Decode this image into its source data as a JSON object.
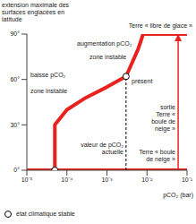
{
  "chart_data": {
    "type": "line",
    "x_label": "pCO₂ (bar)",
    "y_label": "extension maximale des surfaces englacées en latitude",
    "log": "x",
    "grid": false,
    "xlim": [
      1e-05,
      0.1
    ],
    "xticks": [
      {
        "value": 1e-05,
        "label": "10⁻⁵"
      },
      {
        "value": 0.0001,
        "label": "10⁻⁴"
      },
      {
        "value": 0.001,
        "label": "10⁻³"
      },
      {
        "value": 0.01,
        "label": "10⁻²"
      },
      {
        "value": 0.1,
        "label": "10⁻¹"
      }
    ],
    "ylim": [
      0,
      90
    ],
    "yticks": [
      {
        "value": 0,
        "label": "0°"
      },
      {
        "value": 30,
        "label": "30°"
      },
      {
        "value": 60,
        "label": "60°"
      },
      {
        "value": 90,
        "label": "90°"
      }
    ],
    "series": [
      {
        "name": "Terre « boule de neige »",
        "color": "#e8231f",
        "x": [
          1e-05,
          0.1
        ],
        "values": [
          0,
          0
        ]
      },
      {
        "name": "Terre « libre de glace »",
        "color": "#e8231f",
        "x": [
          0.008,
          0.1
        ],
        "values": [
          90,
          90
        ]
      },
      {
        "color": "#e8231f",
        "x": [
          5e-05,
          5e-05,
          0.0001,
          0.0003,
          0.001,
          0.003,
          0.006,
          0.008
        ],
        "values": [
          0,
          30,
          40,
          48,
          55,
          62,
          80,
          90
        ]
      },
      {
        "name": "valeur de pCO₂ actuelle",
        "color": "#000000",
        "line_style": "dashed",
        "x": [
          0.003,
          0.003
        ],
        "values": [
          0,
          62
        ]
      },
      {
        "name": "sortie",
        "color": "#e8231f",
        "marker": "arrow",
        "x": [
          0.06,
          0.06
        ],
        "values": [
          0,
          90
        ]
      }
    ],
    "stable_states": {
      "label": "état climatique stable",
      "marker": "circle",
      "x": [
        5e-05,
        0.003
      ],
      "values": [
        0,
        62
      ]
    },
    "annotations": [
      "augmentation pCO₂",
      "zone instable",
      "présent",
      "baisse pCO₂",
      "zone instable"
    ],
    "exit_note": "Terre « boule de neige »"
  }
}
